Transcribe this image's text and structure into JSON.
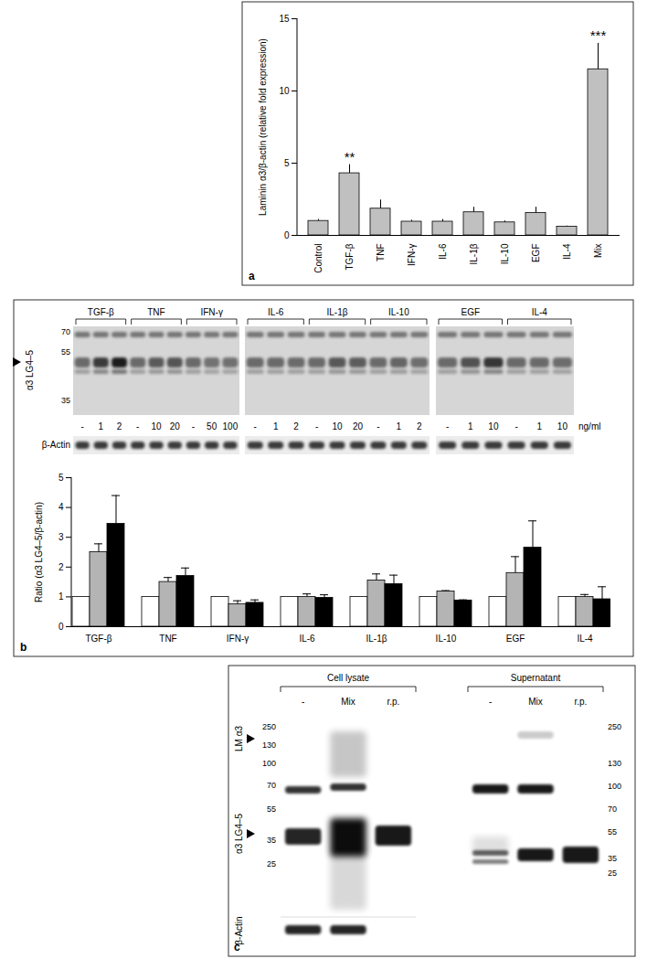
{
  "chart_data": [
    {
      "type": "bar",
      "panel_label": "a",
      "y_label": "Laminin α3/β-actin (relative fold expression)",
      "categories": [
        "Control",
        "TGF-β",
        "TNF",
        "IFN-γ",
        "IL-6",
        "IL-1β",
        "IL-10",
        "EGF",
        "IL-4",
        "Mix"
      ],
      "values": [
        1.0,
        4.3,
        1.85,
        0.95,
        0.95,
        1.6,
        0.9,
        1.55,
        0.6,
        11.5
      ],
      "errors": [
        0.1,
        0.6,
        0.6,
        0.1,
        0.15,
        0.35,
        0.1,
        0.4,
        0.05,
        1.8
      ],
      "color": "#c0c0c0",
      "ylim": [
        0,
        15
      ],
      "yticks": [
        0,
        5,
        10,
        15
      ],
      "grid": false,
      "annotations": [
        {
          "category": "TGF-β",
          "text": "**"
        },
        {
          "category": "Mix",
          "text": "***"
        }
      ]
    },
    {
      "type": "bar",
      "panel_label": "b",
      "y_label": "Ratio (α3 LG4–5/β-actin)",
      "categories": [
        "TGF-β",
        "TNF",
        "IFN-γ",
        "IL-6",
        "IL-1β",
        "IL-10",
        "EGF",
        "IL-4"
      ],
      "series": [
        {
          "color": "#ffffff",
          "values": [
            1,
            1,
            1,
            1,
            1,
            1,
            1,
            1
          ]
        },
        {
          "color": "#b4b4b4",
          "values": [
            2.5,
            1.5,
            0.75,
            1.0,
            1.55,
            1.18,
            1.8,
            1.0
          ],
          "errors": [
            0.28,
            0.15,
            0.12,
            0.1,
            0.22,
            0.03,
            0.55,
            0.08
          ]
        },
        {
          "color": "#000000",
          "values": [
            3.45,
            1.7,
            0.8,
            0.97,
            1.43,
            0.88,
            2.65,
            0.92
          ],
          "errors": [
            0.95,
            0.27,
            0.1,
            0.1,
            0.3,
            0.02,
            0.9,
            0.42
          ]
        }
      ],
      "ylim": [
        0,
        5
      ],
      "yticks": [
        0,
        1,
        2,
        3,
        4,
        5
      ],
      "grid": false
    }
  ],
  "blots": [
    {
      "panel_label": "b",
      "band_label": "α3 LG4–5",
      "markers": [
        70,
        55,
        35
      ],
      "unit": "ng/ml",
      "loading_control": "β-Actin",
      "groups": [
        {
          "label": "TGF-β",
          "lanes": [
            "-",
            "1",
            "2"
          ]
        },
        {
          "label": "TNF",
          "lanes": [
            "-",
            "10",
            "20"
          ]
        },
        {
          "label": "IFN-γ",
          "lanes": [
            "-",
            "50",
            "100"
          ]
        },
        {
          "label": "IL-6",
          "lanes": [
            "-",
            "1",
            "2"
          ]
        },
        {
          "label": "IL-1β",
          "lanes": [
            "-",
            "10",
            "20"
          ]
        },
        {
          "label": "IL-10",
          "lanes": [
            "-",
            "1",
            "2"
          ]
        },
        {
          "label": "EGF",
          "lanes": [
            "-",
            "1",
            "10"
          ]
        },
        {
          "label": "IL-4",
          "lanes": [
            "-",
            "1",
            "10"
          ]
        }
      ]
    },
    {
      "panel_label": "c",
      "band_labels": [
        "LM α3",
        "α3 LG4–5"
      ],
      "loading_control": "β-Actin",
      "markers_left": [
        250,
        130,
        100,
        70,
        55,
        35,
        25
      ],
      "markers_right": [
        250,
        130,
        100,
        70,
        55,
        35,
        25
      ],
      "groups": [
        {
          "label": "Cell lysate",
          "lanes": [
            "-",
            "Mix",
            "r.p."
          ]
        },
        {
          "label": "Supernatant",
          "lanes": [
            "-",
            "Mix",
            "r.p."
          ]
        }
      ]
    }
  ]
}
